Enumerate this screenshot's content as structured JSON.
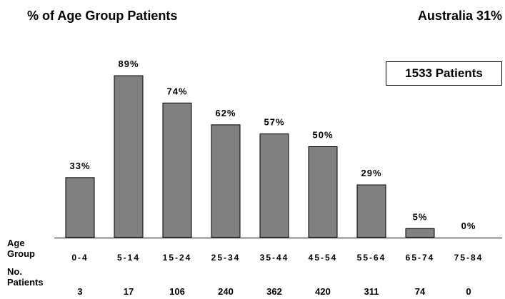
{
  "title": "% of Age Group Patients",
  "subtitle": "Australia 31%",
  "total_box": "1533  Patients",
  "row_labels": {
    "age_line1": "Age",
    "age_line2": "Group",
    "patients_line1": "No.",
    "patients_line2": "Patients"
  },
  "chart_data": {
    "type": "bar",
    "title": "% of Age Group Patients",
    "categories": [
      "0-4",
      "5-14",
      "15-24",
      "25-34",
      "35-44",
      "45-54",
      "55-64",
      "65-74",
      "75-84"
    ],
    "values": [
      33,
      89,
      74,
      62,
      57,
      50,
      29,
      5,
      0
    ],
    "value_labels": [
      "33%",
      "89%",
      "74%",
      "62%",
      "57%",
      "50%",
      "29%",
      "5%",
      "0%"
    ],
    "patient_counts": [
      "3",
      "17",
      "106",
      "240",
      "362",
      "420",
      "311",
      "74",
      "0"
    ],
    "xlabel": "Age Group",
    "ylabel": "",
    "ylim": [
      0,
      100
    ],
    "grid": false,
    "bar_color": "#808080"
  }
}
